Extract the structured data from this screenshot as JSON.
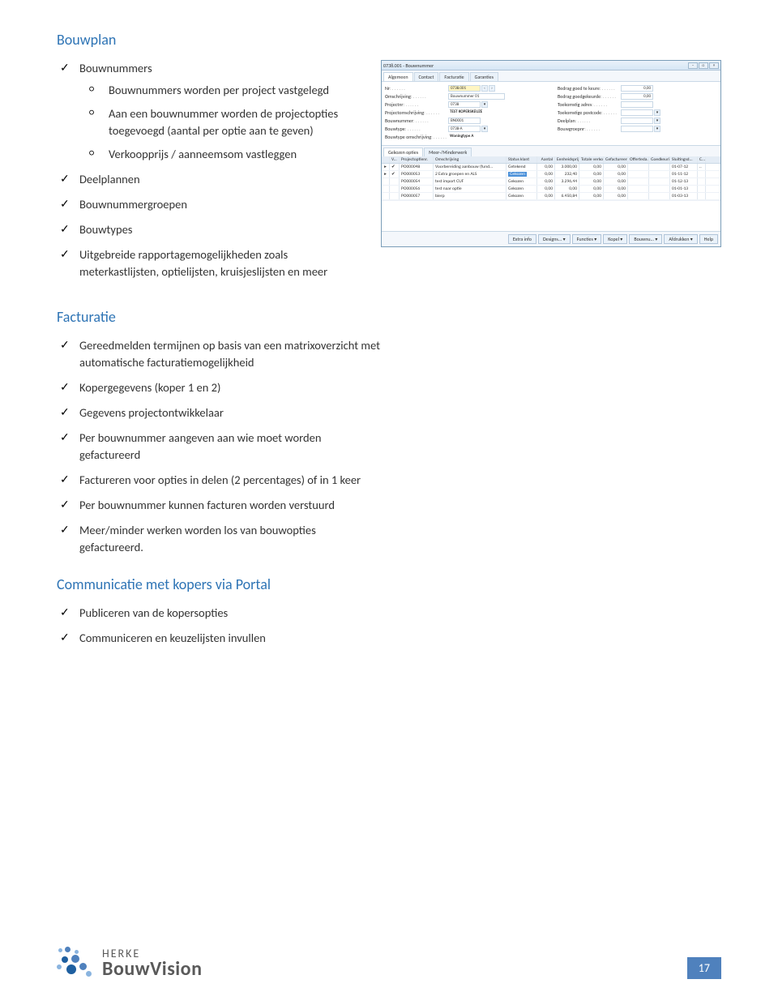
{
  "colors": {
    "heading": "#2e74b5",
    "body_text": "#333333",
    "pagenum_bg": "#4f81bd",
    "logo_text": "#5a5a5a",
    "logo_dot_dark": "#1e5fa0",
    "logo_dot_mid": "#4f81bd",
    "logo_dot_light": "#8ab4df"
  },
  "section1": {
    "title": "Bouwplan",
    "item1": {
      "label": "Bouwnummers",
      "sub": [
        "Bouwnummers worden per project vastgelegd",
        "Aan een bouwnummer worden de projectopties toegevoegd (aantal per optie aan te geven)",
        "Verkoopprijs / aanneemsom vastleggen"
      ]
    },
    "item2": "Deelplannen",
    "item3": "Bouwnummergroepen",
    "item4": "Bouwtypes",
    "item5": "Uitgebreide rapportagemogelijkheden zoals meterkastlijsten, optielijsten, kruisjeslijsten en meer"
  },
  "section2": {
    "title": "Facturatie",
    "items": [
      "Gereedmelden termijnen op basis van een matrixoverzicht met automatische facturatiemogelijkheid",
      "Kopergegevens (koper 1 en 2)",
      "Gegevens projectontwikkelaar",
      "Per bouwnummer aangeven aan wie moet worden gefactureerd",
      "Factureren voor opties in delen (2 percentages) of in 1 keer",
      "Per bouwnummer kunnen facturen worden verstuurd",
      "Meer/minder werken worden los van bouwopties gefactureerd."
    ]
  },
  "section3": {
    "title": "Communicatie met kopers via Portal",
    "items": [
      "Publiceren van de kopersopties",
      "Communiceren en keuzelijsten invullen"
    ]
  },
  "app": {
    "title": "0738.001 - Bouwnummer",
    "tabs": [
      "Algemeen",
      "Contact",
      "Facturatie",
      "Garanties"
    ],
    "form_left": [
      {
        "label": "Nr",
        "value": "0738.001",
        "yellow": true,
        "nav": true
      },
      {
        "label": "Omschrijving",
        "value": "Bouwnummer 01"
      },
      {
        "label": "Projectnr",
        "value": "0738",
        "btn": true
      },
      {
        "label": "Projectomschrijving",
        "value": "TEST KOPERSKEUZE"
      },
      {
        "label": "Bouwnummer",
        "value": "BN0001"
      },
      {
        "label": "Bouwtype",
        "value": "0738-A",
        "btn": true
      },
      {
        "label": "Bouwtype omschrijving",
        "value": "Woningtype A"
      }
    ],
    "form_right": [
      {
        "label": "Bedrag goed te keure",
        "value": "0,00"
      },
      {
        "label": "Bedrag goedgekeurde",
        "value": "0,00"
      },
      {
        "label": "Toekomstig adres",
        "value": ""
      },
      {
        "label": "Toekomstige postcode",
        "value": "",
        "btn": true
      },
      {
        "label": "Deelplan",
        "value": "",
        "btn": true
      },
      {
        "label": "Bouwgroepnr",
        "value": "",
        "btn": true
      }
    ],
    "subtabs": [
      "Gekozen opties",
      "Meer-/Minderwerk"
    ],
    "grid_headers": [
      "",
      "V...",
      "Projectoptienr.",
      "Omschrijving",
      "Status klant",
      "Aantal",
      "Eenheidsprijs ...",
      "Totale verkoo...",
      "Gefactureerd ...",
      "Offerteda...",
      "Goedkeuri...",
      "Sluitingsd...",
      "C..."
    ],
    "grid_rows": [
      {
        "exp": "▸",
        "mark": "✔",
        "opt": "PO000048",
        "desc": "Voorbereiding aanbouw (fund...",
        "status": "Getekend",
        "st_sel": false,
        "n1": "0,00",
        "n2": "3.000,00",
        "n3": "0,00",
        "n4": "0,00",
        "d1": "01-07-12",
        "c": ".."
      },
      {
        "exp": "▸",
        "mark": "✔",
        "opt": "PO000053",
        "desc": "2 Extra groepen en ALS",
        "status": "Gekozen",
        "st_sel": true,
        "n1": "0,00",
        "n2": "232,40",
        "n3": "0,00",
        "n4": "0,00",
        "d1": "01-11-12",
        "c": ""
      },
      {
        "exp": "",
        "mark": "",
        "opt": "PO000054",
        "desc": "test import CUF",
        "status": "Gekozen",
        "st_sel": false,
        "n1": "0,00",
        "n2": "3.296,44",
        "n3": "0,00",
        "n4": "0,00",
        "d1": "01-12-13",
        "c": ""
      },
      {
        "exp": "",
        "mark": "",
        "opt": "PO000056",
        "desc": "test naar optie",
        "status": "Gekozen",
        "st_sel": false,
        "n1": "0,00",
        "n2": "0,00",
        "n3": "0,00",
        "n4": "0,00",
        "d1": "01-01-13",
        "c": ""
      },
      {
        "exp": "",
        "mark": "",
        "opt": "PO000057",
        "desc": "bierp",
        "status": "Gekozen",
        "st_sel": false,
        "n1": "0,00",
        "n2": "6.450,84",
        "n3": "0,00",
        "n4": "0,00",
        "d1": "01-03-13",
        "c": ""
      }
    ],
    "buttons": [
      "Extra info",
      "Designs... ▾",
      "Functies ▾",
      "Kopel ▾",
      "Bouwnu... ▾",
      "Afdrukken ▾",
      "Help"
    ]
  },
  "logo": {
    "line1": "HERKE",
    "line2": "BouwVision"
  },
  "page_number": "17"
}
